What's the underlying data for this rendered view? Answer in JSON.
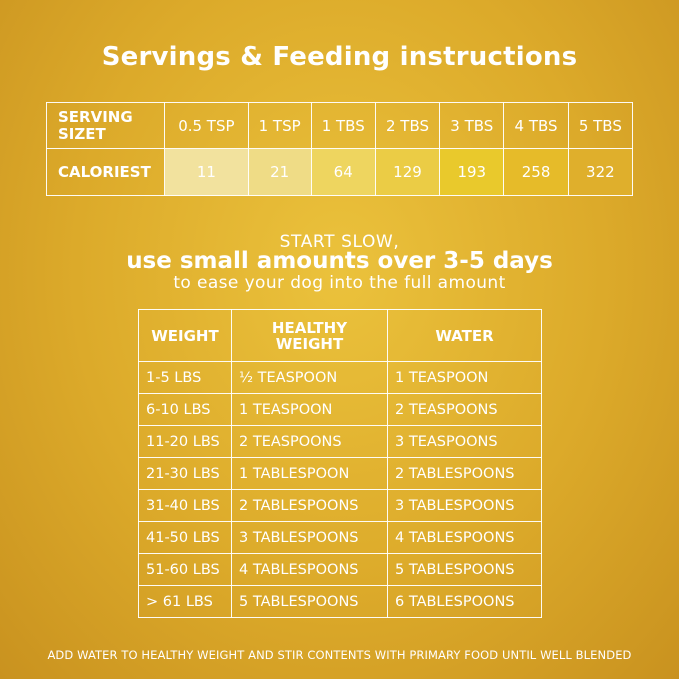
{
  "title": "Servings & Feeding instructions",
  "servings": {
    "serving_label": "SERVING SIZET",
    "calories_label": "CALORIEST",
    "sizes": [
      "0.5 TSP",
      "1 TSP",
      "1 TBS",
      "2 TBS",
      "3 TBS",
      "4 TBS",
      "5 TBS"
    ],
    "calories": [
      "11",
      "21",
      "64",
      "129",
      "193",
      "258",
      "322"
    ],
    "highlight_colors": [
      "#f2e29e",
      "#efdc86",
      "#eed55f",
      "#ebcc45",
      "#e9c92c",
      "#e6bb29",
      "#dfaf2c"
    ]
  },
  "start_slow": {
    "line1": "START SLOW,",
    "line2": "use small amounts over 3-5 days",
    "line3": "to ease your dog into the full amount"
  },
  "weights": {
    "headers": [
      "WEIGHT",
      "HEALTHY WEIGHT",
      "WATER"
    ],
    "rows": [
      {
        "weight": "1-5 LBS",
        "healthy": "½ TEASPOON",
        "water": "1 TEASPOON"
      },
      {
        "weight": "6-10 LBS",
        "healthy": "1 TEASPOON",
        "water": "2 TEASPOONS"
      },
      {
        "weight": "11-20 LBS",
        "healthy": "2 TEASPOONS",
        "water": "3 TEASPOONS"
      },
      {
        "weight": "21-30 LBS",
        "healthy": "1 TABLESPOON",
        "water": "2 TABLESPOONS"
      },
      {
        "weight": "31-40 LBS",
        "healthy": "2 TABLESPOONS",
        "water": "3 TABLESPOONS"
      },
      {
        "weight": "41-50 LBS",
        "healthy": "3 TABLESPOONS",
        "water": "4 TABLESPOONS"
      },
      {
        "weight": "51-60 LBS",
        "healthy": "4 TABLESPOONS",
        "water": "5 TABLESPOONS"
      },
      {
        "weight": "> 61 LBS",
        "healthy": "5 TABLESPOONS",
        "water": "6 TABLESPOONS"
      }
    ]
  },
  "footer": "ADD WATER TO HEALTHY WEIGHT AND STIR CONTENTS WITH PRIMARY FOOD UNTIL WELL BLENDED"
}
